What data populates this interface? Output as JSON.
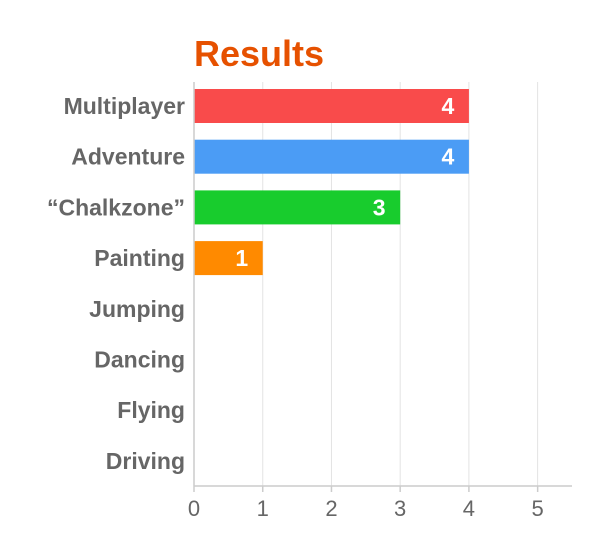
{
  "chart_data": {
    "type": "bar",
    "orientation": "horizontal",
    "title": "Results",
    "title_color": "#e65100",
    "categories": [
      "Multiplayer",
      "Adventure",
      "“Chalkzone”",
      "Painting",
      "Jumping",
      "Dancing",
      "Flying",
      "Driving"
    ],
    "values": [
      4,
      4,
      3,
      1,
      0,
      0,
      0,
      0
    ],
    "bar_colors": [
      "#f94b4b",
      "#4b9cf5",
      "#18cc2d",
      "#ff8a00",
      "#cccccc",
      "#cccccc",
      "#cccccc",
      "#cccccc"
    ],
    "xlim": [
      0,
      5.5
    ],
    "xticks": [
      0,
      1,
      2,
      3,
      4,
      5
    ],
    "xlabel": "",
    "ylabel": "",
    "grid": true,
    "data_labels": true
  }
}
